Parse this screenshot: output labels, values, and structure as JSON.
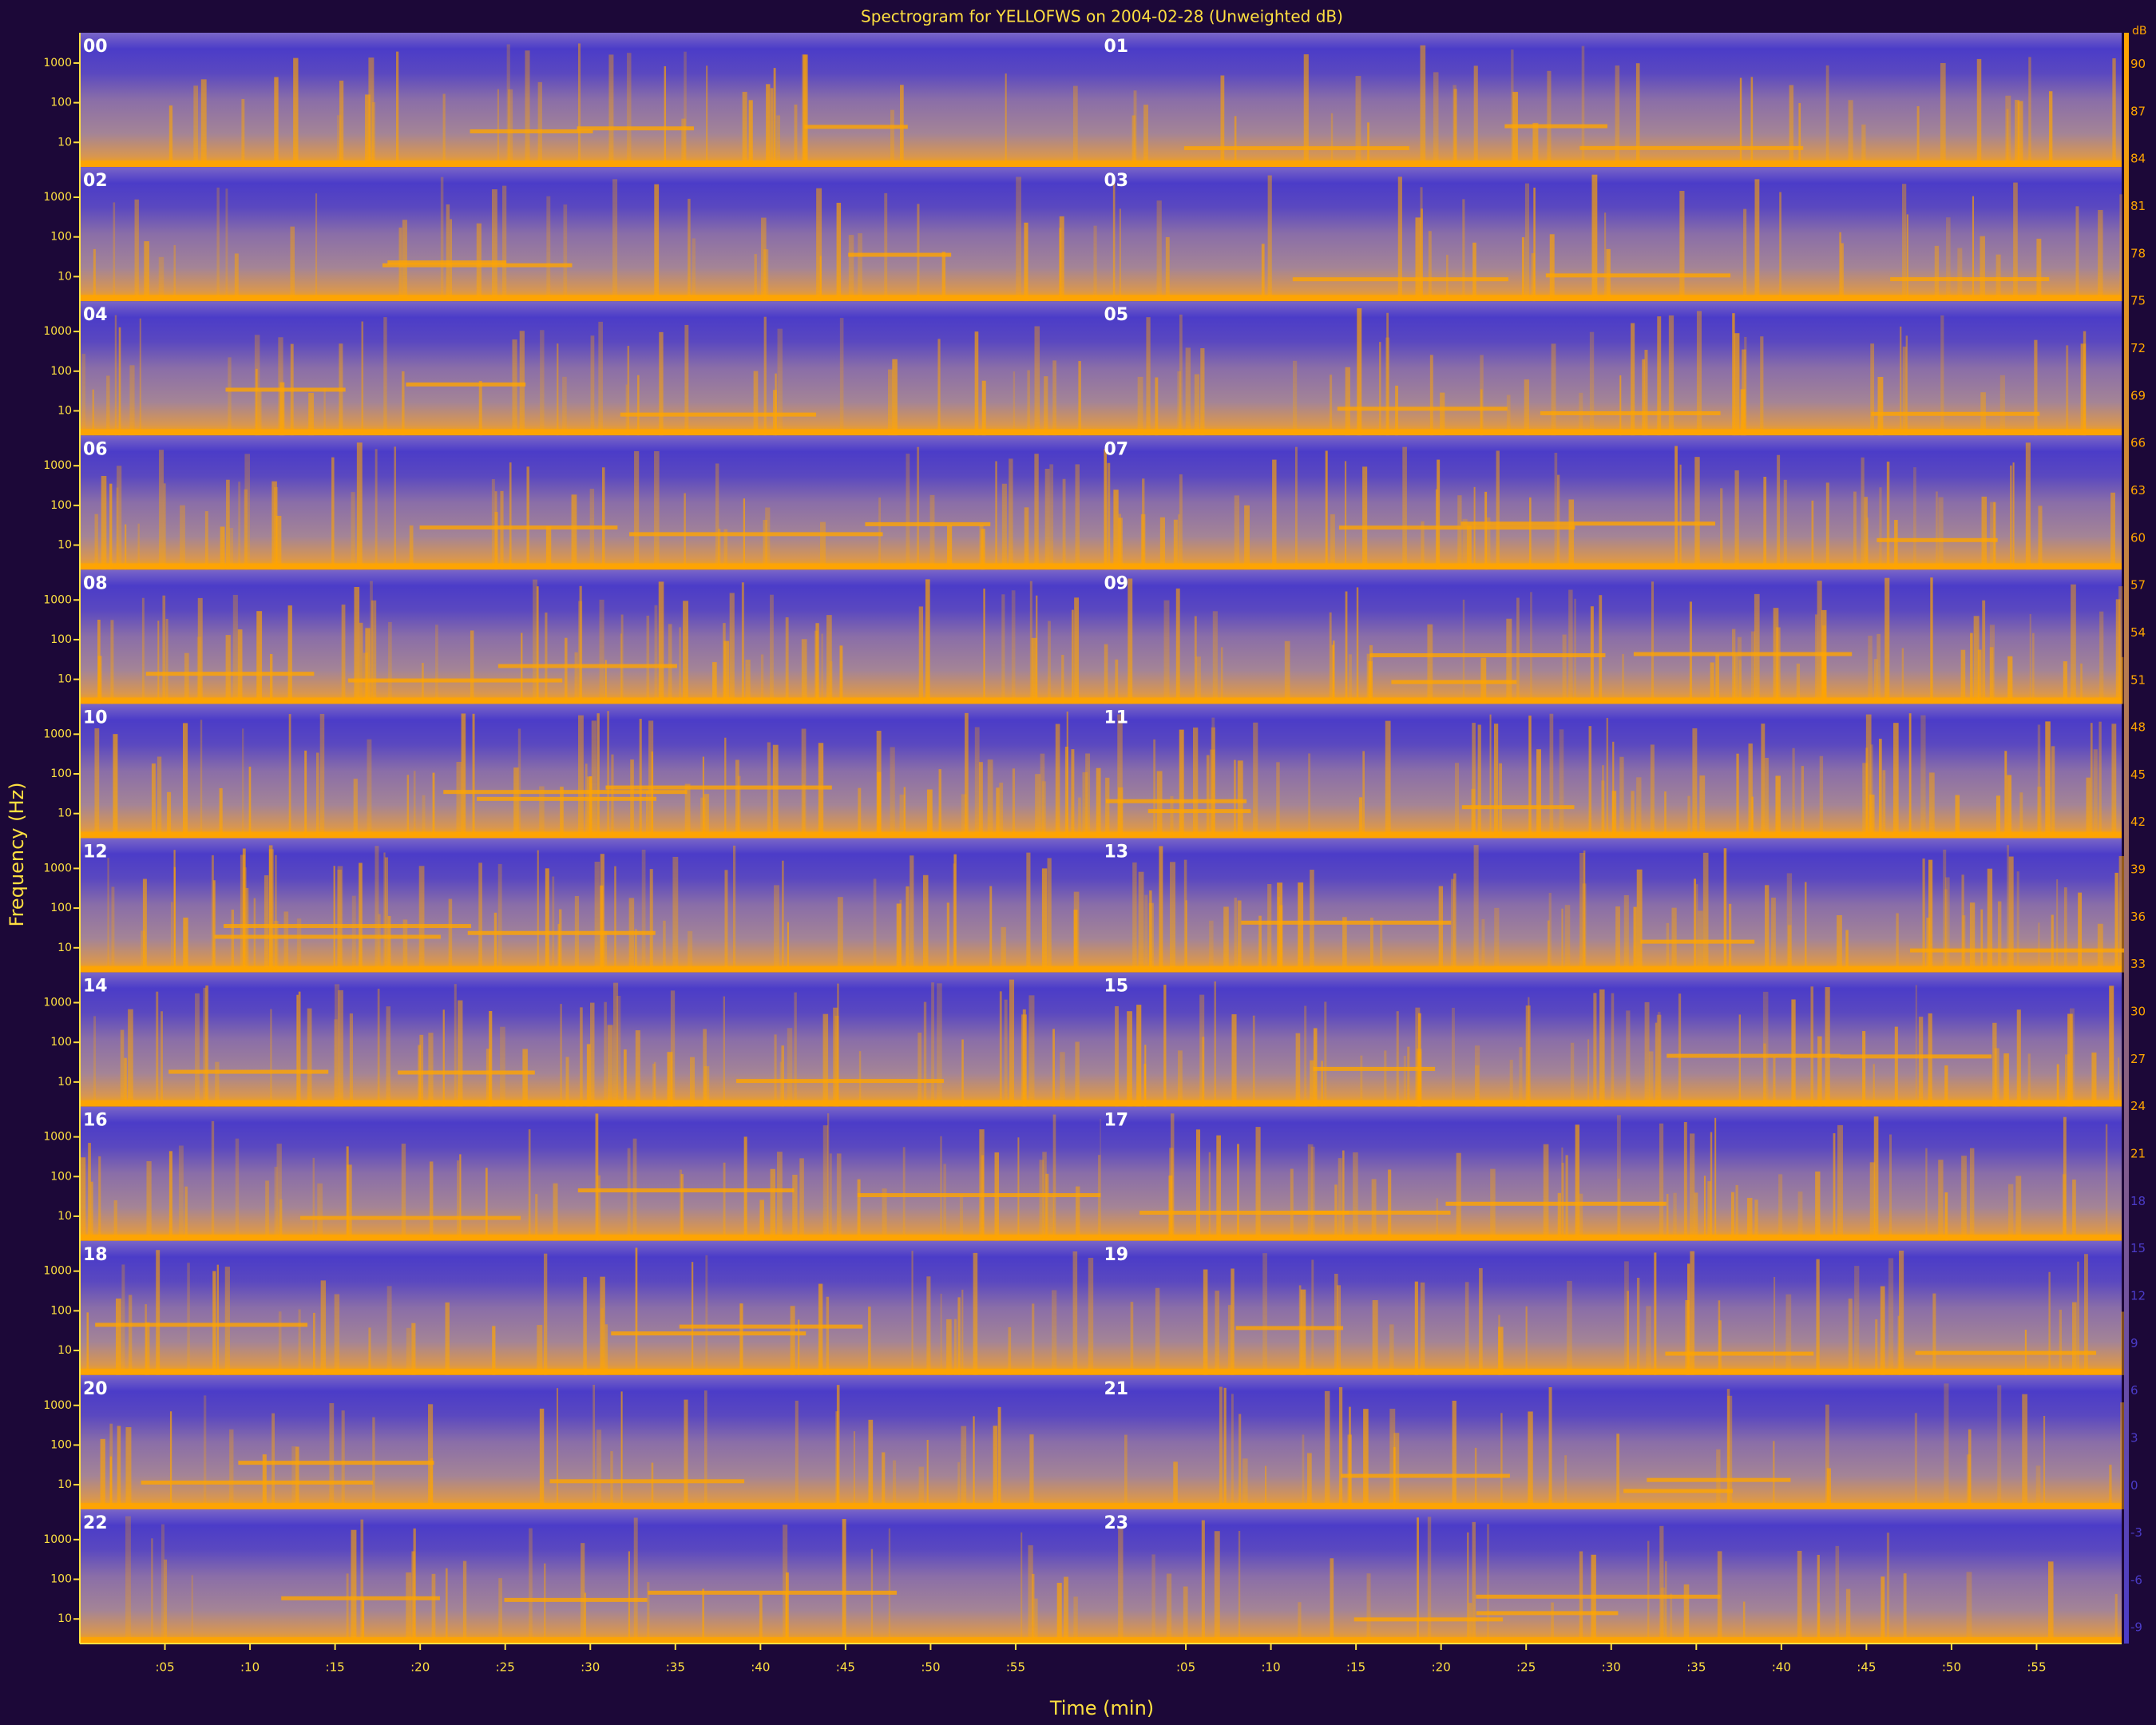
{
  "chart_data": {
    "type": "spectrogram",
    "title": "Spectrogram for YELLOFWS on 2004-02-28 (Unweighted dB)",
    "xlabel": "Time (min)",
    "ylabel": "Frequency (Hz)",
    "panels": [
      "00",
      "01",
      "02",
      "03",
      "04",
      "05",
      "06",
      "07",
      "08",
      "09",
      "10",
      "11",
      "12",
      "13",
      "14",
      "15",
      "16",
      "17",
      "18",
      "19",
      "20",
      "21",
      "22",
      "23"
    ],
    "xlim": [
      0,
      60
    ],
    "xticks": [
      {
        "value": 5,
        "label": ":05"
      },
      {
        "value": 10,
        "label": ":10"
      },
      {
        "value": 15,
        "label": ":15"
      },
      {
        "value": 20,
        "label": ":20"
      },
      {
        "value": 25,
        "label": ":25"
      },
      {
        "value": 30,
        "label": ":30"
      },
      {
        "value": 35,
        "label": ":35"
      },
      {
        "value": 40,
        "label": ":40"
      },
      {
        "value": 45,
        "label": ":45"
      },
      {
        "value": 50,
        "label": ":50"
      },
      {
        "value": 55,
        "label": ":55"
      }
    ],
    "ylog": true,
    "ylim": [
      2.4,
      5800
    ],
    "yticks": [
      1000,
      100,
      10
    ],
    "colorbar": {
      "label": "dB",
      "lim": [
        -10,
        92
      ],
      "ticks": [
        90,
        87,
        84,
        81,
        78,
        75,
        72,
        69,
        66,
        63,
        60,
        57,
        54,
        51,
        48,
        45,
        42,
        39,
        36,
        33,
        30,
        27,
        24,
        21,
        18,
        15,
        12,
        9,
        6,
        3,
        0,
        -3,
        -6,
        -9
      ]
    },
    "colors": {
      "low": "#4b3cc8",
      "high": "#ffa500"
    }
  }
}
